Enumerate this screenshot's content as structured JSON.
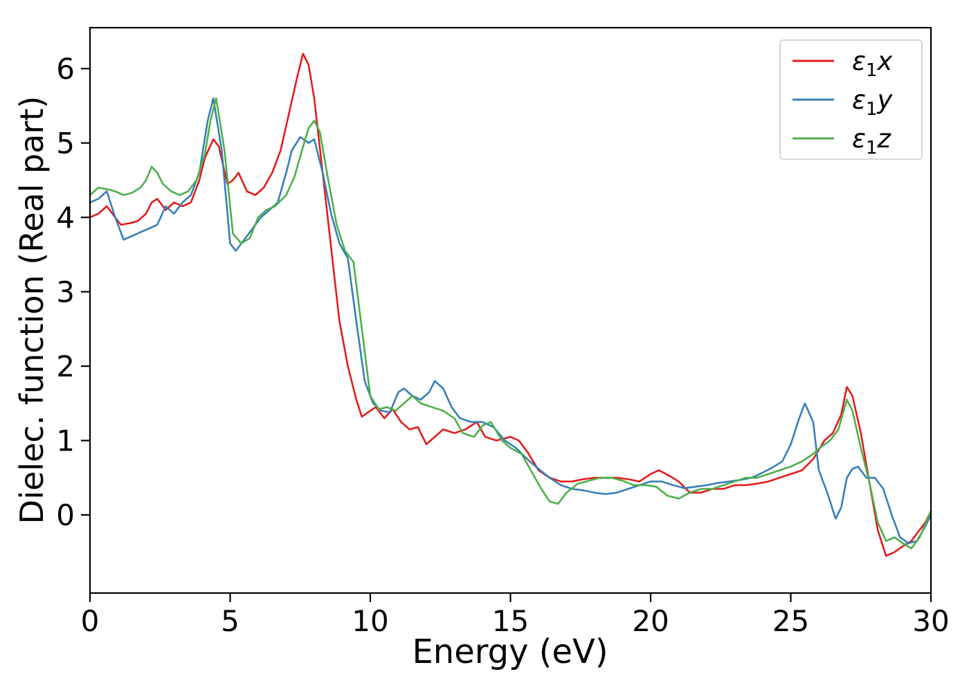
{
  "chart_data": {
    "type": "line",
    "title": "",
    "xlabel": "Energy (eV)",
    "ylabel": "Dielec. function (Real part)",
    "xlim": [
      0,
      30
    ],
    "ylim": [
      -1.05,
      6.55
    ],
    "xticks": [
      0,
      5,
      10,
      15,
      20,
      25,
      30
    ],
    "yticks": [
      0,
      1,
      2,
      3,
      4,
      5,
      6
    ],
    "grid": false,
    "legend": {
      "position": "upper right",
      "border_color": "#cccccc",
      "background": "#ffffff"
    },
    "axis_color": "#000000",
    "series": [
      {
        "name": "epsilon1-x",
        "label": {
          "base": "ε",
          "sub": "1",
          "var": "x"
        },
        "color": "#e41a1c",
        "x": [
          0,
          0.3,
          0.6,
          0.9,
          1.1,
          1.4,
          1.7,
          2.0,
          2.2,
          2.4,
          2.7,
          3.0,
          3.3,
          3.6,
          3.9,
          4.1,
          4.4,
          4.6,
          4.9,
          5.1,
          5.3,
          5.6,
          5.9,
          6.2,
          6.5,
          6.8,
          7.1,
          7.4,
          7.6,
          7.8,
          8.0,
          8.3,
          8.6,
          8.9,
          9.2,
          9.5,
          9.7,
          10.0,
          10.2,
          10.5,
          10.8,
          11.1,
          11.4,
          11.7,
          12.0,
          12.3,
          12.6,
          13.0,
          13.4,
          13.8,
          14.1,
          14.5,
          15.0,
          15.3,
          15.6,
          16.0,
          16.4,
          16.8,
          17.2,
          17.6,
          18.0,
          18.4,
          18.8,
          19.2,
          19.6,
          20.0,
          20.3,
          20.7,
          21.0,
          21.4,
          21.8,
          22.2,
          22.6,
          23.0,
          23.4,
          23.8,
          24.2,
          24.6,
          25.0,
          25.4,
          25.8,
          26.2,
          26.5,
          26.8,
          27.0,
          27.2,
          27.5,
          27.8,
          28.1,
          28.4,
          28.7,
          29.0,
          29.3,
          29.6,
          29.8,
          30.0
        ],
        "y": [
          4.0,
          4.05,
          4.15,
          4.0,
          3.9,
          3.92,
          3.95,
          4.05,
          4.2,
          4.25,
          4.1,
          4.2,
          4.15,
          4.2,
          4.5,
          4.8,
          5.05,
          4.95,
          4.45,
          4.5,
          4.6,
          4.35,
          4.3,
          4.4,
          4.6,
          4.9,
          5.4,
          5.9,
          6.2,
          6.05,
          5.6,
          4.6,
          3.6,
          2.6,
          2.0,
          1.55,
          1.32,
          1.4,
          1.45,
          1.3,
          1.42,
          1.25,
          1.15,
          1.18,
          0.95,
          1.05,
          1.15,
          1.1,
          1.15,
          1.25,
          1.05,
          1.0,
          1.05,
          1.0,
          0.85,
          0.6,
          0.5,
          0.45,
          0.45,
          0.48,
          0.5,
          0.5,
          0.5,
          0.48,
          0.45,
          0.55,
          0.6,
          0.52,
          0.45,
          0.3,
          0.3,
          0.35,
          0.35,
          0.4,
          0.4,
          0.42,
          0.45,
          0.5,
          0.55,
          0.6,
          0.75,
          1.0,
          1.1,
          1.35,
          1.72,
          1.6,
          1.1,
          0.45,
          -0.2,
          -0.55,
          -0.5,
          -0.42,
          -0.35,
          -0.2,
          -0.1,
          0.05
        ]
      },
      {
        "name": "epsilon1-y",
        "label": {
          "base": "ε",
          "sub": "1",
          "var": "y"
        },
        "color": "#377eb8",
        "x": [
          0,
          0.3,
          0.6,
          0.9,
          1.2,
          1.5,
          1.8,
          2.1,
          2.4,
          2.7,
          3.0,
          3.3,
          3.6,
          3.9,
          4.2,
          4.4,
          4.7,
          5.0,
          5.2,
          5.5,
          5.8,
          6.1,
          6.4,
          6.7,
          7.0,
          7.2,
          7.5,
          7.8,
          8.0,
          8.3,
          8.6,
          8.9,
          9.2,
          9.5,
          9.8,
          10.1,
          10.4,
          10.7,
          11.0,
          11.2,
          11.5,
          11.8,
          12.1,
          12.3,
          12.6,
          12.9,
          13.2,
          13.6,
          14.0,
          14.4,
          14.8,
          15.2,
          15.6,
          16.0,
          16.4,
          16.8,
          17.2,
          17.6,
          18.0,
          18.4,
          18.8,
          19.2,
          19.6,
          20.0,
          20.4,
          20.8,
          21.2,
          21.6,
          22.0,
          22.4,
          22.8,
          23.2,
          23.6,
          24.0,
          24.4,
          24.7,
          25.0,
          25.3,
          25.5,
          25.8,
          26.0,
          26.3,
          26.6,
          26.8,
          27.0,
          27.2,
          27.4,
          27.7,
          28.0,
          28.3,
          28.6,
          28.9,
          29.2,
          29.5,
          29.8,
          30.0
        ],
        "y": [
          4.2,
          4.25,
          4.35,
          4.0,
          3.7,
          3.75,
          3.8,
          3.85,
          3.9,
          4.15,
          4.05,
          4.2,
          4.3,
          4.6,
          5.3,
          5.6,
          4.9,
          3.65,
          3.55,
          3.7,
          3.85,
          4.0,
          4.1,
          4.2,
          4.6,
          4.9,
          5.08,
          5.0,
          5.05,
          4.6,
          4.05,
          3.65,
          3.45,
          2.6,
          1.8,
          1.5,
          1.4,
          1.38,
          1.65,
          1.7,
          1.6,
          1.55,
          1.65,
          1.8,
          1.7,
          1.45,
          1.3,
          1.25,
          1.25,
          1.18,
          1.0,
          0.9,
          0.75,
          0.62,
          0.5,
          0.4,
          0.35,
          0.33,
          0.3,
          0.28,
          0.3,
          0.35,
          0.4,
          0.45,
          0.45,
          0.4,
          0.36,
          0.38,
          0.4,
          0.43,
          0.45,
          0.47,
          0.5,
          0.57,
          0.65,
          0.72,
          0.95,
          1.3,
          1.5,
          1.25,
          0.6,
          0.3,
          -0.05,
          0.1,
          0.5,
          0.62,
          0.65,
          0.5,
          0.5,
          0.35,
          0.0,
          -0.3,
          -0.38,
          -0.35,
          -0.15,
          0.0
        ]
      },
      {
        "name": "epsilon1-z",
        "label": {
          "base": "ε",
          "sub": "1",
          "var": "z"
        },
        "color": "#4daf4a",
        "x": [
          0,
          0.3,
          0.6,
          0.9,
          1.2,
          1.5,
          1.8,
          2.0,
          2.2,
          2.4,
          2.6,
          2.9,
          3.2,
          3.5,
          3.8,
          4.1,
          4.3,
          4.5,
          4.8,
          5.1,
          5.4,
          5.7,
          6.0,
          6.3,
          6.6,
          7.0,
          7.3,
          7.6,
          7.8,
          8.0,
          8.2,
          8.5,
          8.8,
          9.1,
          9.4,
          9.7,
          10.0,
          10.3,
          10.6,
          10.9,
          11.2,
          11.5,
          11.8,
          12.2,
          12.6,
          13.0,
          13.3,
          13.7,
          14.0,
          14.3,
          14.7,
          15.0,
          15.4,
          15.8,
          16.1,
          16.4,
          16.7,
          17.0,
          17.4,
          17.8,
          18.2,
          18.6,
          19.0,
          19.4,
          19.8,
          20.2,
          20.6,
          21.0,
          21.4,
          21.8,
          22.2,
          22.6,
          23.0,
          23.4,
          23.8,
          24.2,
          24.6,
          25.0,
          25.4,
          25.8,
          26.1,
          26.4,
          26.7,
          27.0,
          27.2,
          27.5,
          27.8,
          28.1,
          28.4,
          28.7,
          29.0,
          29.3,
          29.6,
          29.8,
          30.0
        ],
        "y": [
          4.3,
          4.4,
          4.38,
          4.35,
          4.3,
          4.33,
          4.4,
          4.5,
          4.68,
          4.6,
          4.45,
          4.35,
          4.3,
          4.35,
          4.5,
          4.85,
          5.3,
          5.6,
          4.9,
          3.78,
          3.65,
          3.72,
          4.0,
          4.1,
          4.15,
          4.3,
          4.55,
          4.95,
          5.2,
          5.3,
          5.15,
          4.5,
          3.9,
          3.55,
          3.4,
          2.5,
          1.6,
          1.42,
          1.45,
          1.4,
          1.5,
          1.6,
          1.5,
          1.45,
          1.4,
          1.3,
          1.1,
          1.05,
          1.2,
          1.25,
          1.0,
          0.9,
          0.82,
          0.55,
          0.35,
          0.18,
          0.15,
          0.3,
          0.42,
          0.46,
          0.5,
          0.5,
          0.46,
          0.4,
          0.4,
          0.38,
          0.26,
          0.22,
          0.3,
          0.35,
          0.35,
          0.4,
          0.45,
          0.5,
          0.5,
          0.55,
          0.6,
          0.65,
          0.72,
          0.82,
          0.92,
          1.0,
          1.15,
          1.55,
          1.4,
          0.9,
          0.45,
          -0.1,
          -0.35,
          -0.3,
          -0.38,
          -0.45,
          -0.3,
          -0.12,
          0.05
        ]
      }
    ]
  }
}
